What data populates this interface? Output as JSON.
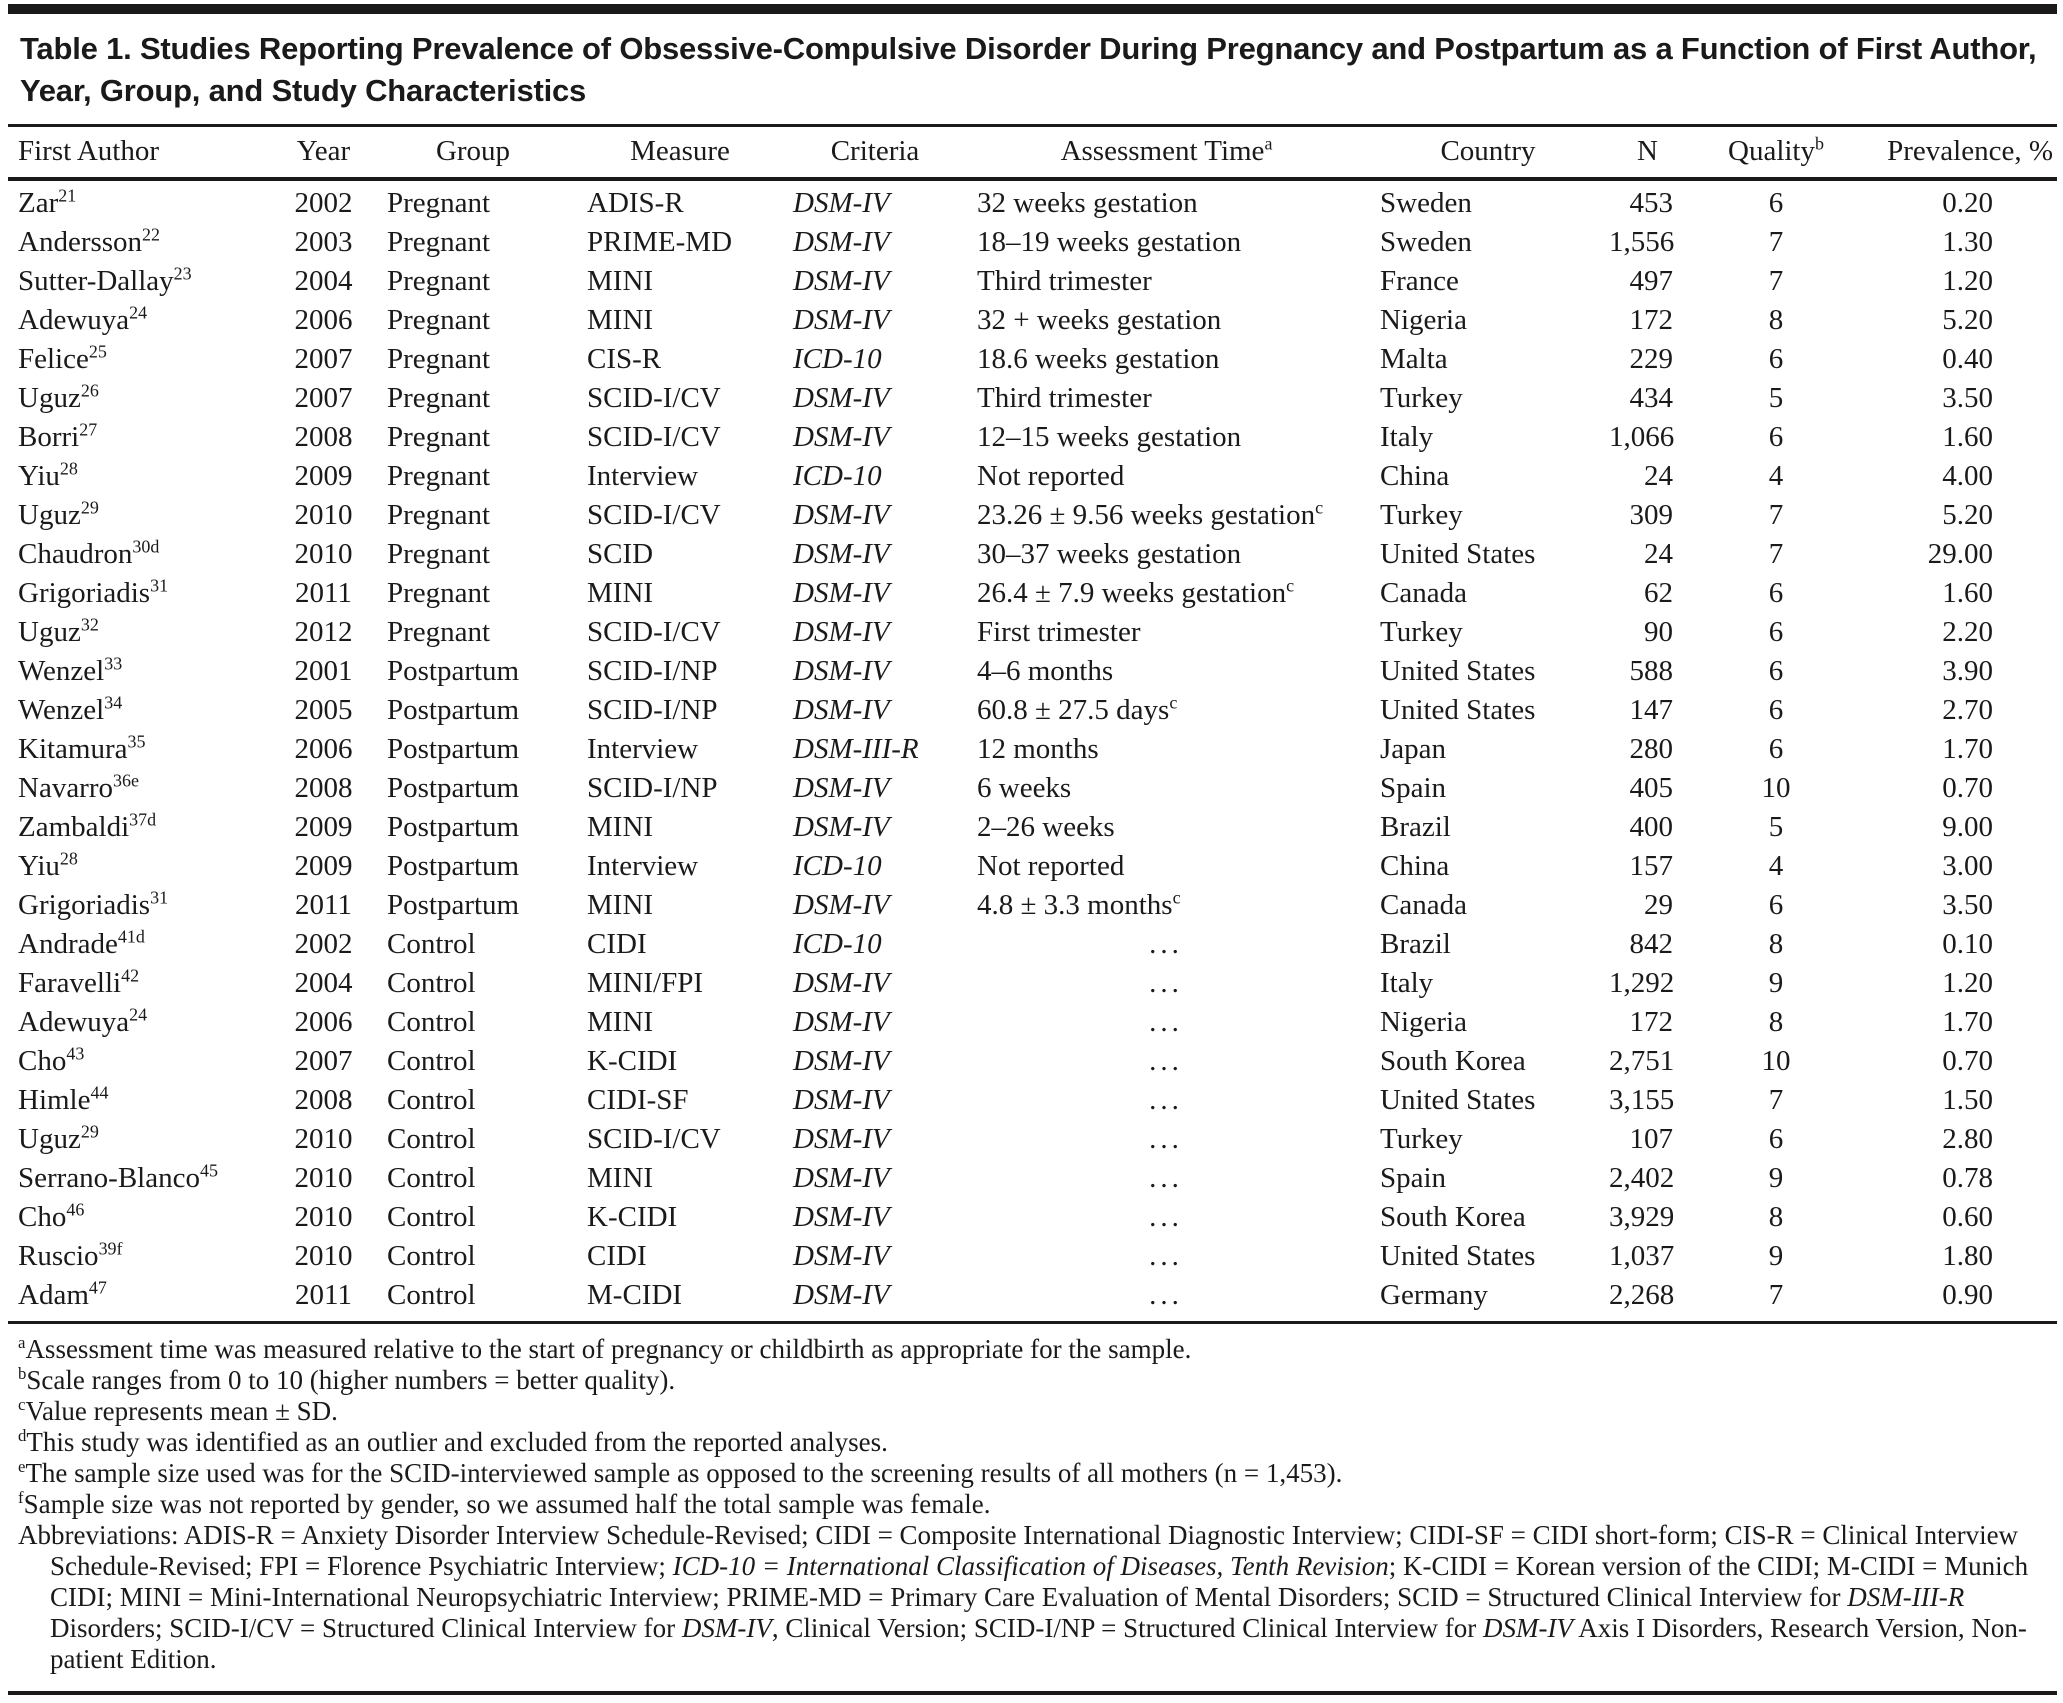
{
  "title": "Table 1. Studies Reporting Prevalence of Obsessive-Compulsive Disorder During Pregnancy and Postpartum as a Function of First Author, Year, Group, and Study Characteristics",
  "columns": [
    {
      "label": "First Author",
      "sup": ""
    },
    {
      "label": "Year",
      "sup": ""
    },
    {
      "label": "Group",
      "sup": ""
    },
    {
      "label": "Measure",
      "sup": ""
    },
    {
      "label": "Criteria",
      "sup": ""
    },
    {
      "label": "Assessment Time",
      "sup": "a"
    },
    {
      "label": "Country",
      "sup": ""
    },
    {
      "label": "N",
      "sup": ""
    },
    {
      "label": "Quality",
      "sup": "b"
    },
    {
      "label": "Prevalence, %",
      "sup": ""
    }
  ],
  "rows": [
    {
      "author": "Zar",
      "ref": "21",
      "year": "2002",
      "group": "Pregnant",
      "measure": "ADIS-R",
      "criteria": "DSM-IV",
      "time": "32 weeks gestation",
      "time_sup": "",
      "country": "Sweden",
      "n": "453",
      "quality": "6",
      "prevalence": "0.20"
    },
    {
      "author": "Andersson",
      "ref": "22",
      "year": "2003",
      "group": "Pregnant",
      "measure": "PRIME-MD",
      "criteria": "DSM-IV",
      "time": "18–19 weeks gestation",
      "time_sup": "",
      "country": "Sweden",
      "n": "1,556",
      "quality": "7",
      "prevalence": "1.30"
    },
    {
      "author": "Sutter-Dallay",
      "ref": "23",
      "year": "2004",
      "group": "Pregnant",
      "measure": "MINI",
      "criteria": "DSM-IV",
      "time": "Third trimester",
      "time_sup": "",
      "country": "France",
      "n": "497",
      "quality": "7",
      "prevalence": "1.20"
    },
    {
      "author": "Adewuya",
      "ref": "24",
      "year": "2006",
      "group": "Pregnant",
      "measure": "MINI",
      "criteria": "DSM-IV",
      "time": "32 + weeks gestation",
      "time_sup": "",
      "country": "Nigeria",
      "n": "172",
      "quality": "8",
      "prevalence": "5.20"
    },
    {
      "author": "Felice",
      "ref": "25",
      "year": "2007",
      "group": "Pregnant",
      "measure": "CIS-R",
      "criteria": "ICD-10",
      "time": "18.6 weeks gestation",
      "time_sup": "",
      "country": "Malta",
      "n": "229",
      "quality": "6",
      "prevalence": "0.40"
    },
    {
      "author": "Uguz",
      "ref": "26",
      "year": "2007",
      "group": "Pregnant",
      "measure": "SCID-I/CV",
      "criteria": "DSM-IV",
      "time": "Third trimester",
      "time_sup": "",
      "country": "Turkey",
      "n": "434",
      "quality": "5",
      "prevalence": "3.50"
    },
    {
      "author": "Borri",
      "ref": "27",
      "year": "2008",
      "group": "Pregnant",
      "measure": "SCID-I/CV",
      "criteria": "DSM-IV",
      "time": "12–15 weeks gestation",
      "time_sup": "",
      "country": "Italy",
      "n": "1,066",
      "quality": "6",
      "prevalence": "1.60"
    },
    {
      "author": "Yiu",
      "ref": "28",
      "year": "2009",
      "group": "Pregnant",
      "measure": "Interview",
      "criteria": "ICD-10",
      "time": "Not reported",
      "time_sup": "",
      "country": "China",
      "n": "24",
      "quality": "4",
      "prevalence": "4.00"
    },
    {
      "author": "Uguz",
      "ref": "29",
      "year": "2010",
      "group": "Pregnant",
      "measure": "SCID-I/CV",
      "criteria": "DSM-IV",
      "time": "23.26 ± 9.56 weeks gestation",
      "time_sup": "c",
      "country": "Turkey",
      "n": "309",
      "quality": "7",
      "prevalence": "5.20"
    },
    {
      "author": "Chaudron",
      "ref": "30d",
      "year": "2010",
      "group": "Pregnant",
      "measure": "SCID",
      "criteria": "DSM-IV",
      "time": "30–37 weeks gestation",
      "time_sup": "",
      "country": "United States",
      "n": "24",
      "quality": "7",
      "prevalence": "29.00"
    },
    {
      "author": "Grigoriadis",
      "ref": "31",
      "year": "2011",
      "group": "Pregnant",
      "measure": "MINI",
      "criteria": "DSM-IV",
      "time": "26.4 ± 7.9 weeks gestation",
      "time_sup": "c",
      "country": "Canada",
      "n": "62",
      "quality": "6",
      "prevalence": "1.60"
    },
    {
      "author": "Uguz",
      "ref": "32",
      "year": "2012",
      "group": "Pregnant",
      "measure": "SCID-I/CV",
      "criteria": "DSM-IV",
      "time": "First trimester",
      "time_sup": "",
      "country": "Turkey",
      "n": "90",
      "quality": "6",
      "prevalence": "2.20"
    },
    {
      "author": "Wenzel",
      "ref": "33",
      "year": "2001",
      "group": "Postpartum",
      "measure": "SCID-I/NP",
      "criteria": "DSM-IV",
      "time": "4–6 months",
      "time_sup": "",
      "country": "United States",
      "n": "588",
      "quality": "6",
      "prevalence": "3.90"
    },
    {
      "author": "Wenzel",
      "ref": "34",
      "year": "2005",
      "group": "Postpartum",
      "measure": "SCID-I/NP",
      "criteria": "DSM-IV",
      "time": "60.8 ± 27.5 days",
      "time_sup": "c",
      "country": "United States",
      "n": "147",
      "quality": "6",
      "prevalence": "2.70"
    },
    {
      "author": "Kitamura",
      "ref": "35",
      "year": "2006",
      "group": "Postpartum",
      "measure": "Interview",
      "criteria": "DSM-III-R",
      "time": "12 months",
      "time_sup": "",
      "country": "Japan",
      "n": "280",
      "quality": "6",
      "prevalence": "1.70"
    },
    {
      "author": "Navarro",
      "ref": "36e",
      "year": "2008",
      "group": "Postpartum",
      "measure": "SCID-I/NP",
      "criteria": "DSM-IV",
      "time": "6 weeks",
      "time_sup": "",
      "country": "Spain",
      "n": "405",
      "quality": "10",
      "prevalence": "0.70"
    },
    {
      "author": "Zambaldi",
      "ref": "37d",
      "year": "2009",
      "group": "Postpartum",
      "measure": "MINI",
      "criteria": "DSM-IV",
      "time": "2–26 weeks",
      "time_sup": "",
      "country": "Brazil",
      "n": "400",
      "quality": "5",
      "prevalence": "9.00"
    },
    {
      "author": "Yiu",
      "ref": "28",
      "year": "2009",
      "group": "Postpartum",
      "measure": "Interview",
      "criteria": "ICD-10",
      "time": "Not reported",
      "time_sup": "",
      "country": "China",
      "n": "157",
      "quality": "4",
      "prevalence": "3.00"
    },
    {
      "author": "Grigoriadis",
      "ref": "31",
      "year": "2011",
      "group": "Postpartum",
      "measure": "MINI",
      "criteria": "DSM-IV",
      "time": "4.8 ± 3.3 months",
      "time_sup": "c",
      "country": "Canada",
      "n": "29",
      "quality": "6",
      "prevalence": "3.50"
    },
    {
      "author": "Andrade",
      "ref": "41d",
      "year": "2002",
      "group": "Control",
      "measure": "CIDI",
      "criteria": "ICD-10",
      "time": "...",
      "time_sup": "",
      "country": "Brazil",
      "n": "842",
      "quality": "8",
      "prevalence": "0.10"
    },
    {
      "author": "Faravelli",
      "ref": "42",
      "year": "2004",
      "group": "Control",
      "measure": "MINI/FPI",
      "criteria": "DSM-IV",
      "time": "...",
      "time_sup": "",
      "country": "Italy",
      "n": "1,292",
      "quality": "9",
      "prevalence": "1.20"
    },
    {
      "author": "Adewuya",
      "ref": "24",
      "year": "2006",
      "group": "Control",
      "measure": "MINI",
      "criteria": "DSM-IV",
      "time": "...",
      "time_sup": "",
      "country": "Nigeria",
      "n": "172",
      "quality": "8",
      "prevalence": "1.70"
    },
    {
      "author": "Cho",
      "ref": "43",
      "year": "2007",
      "group": "Control",
      "measure": "K-CIDI",
      "criteria": "DSM-IV",
      "time": "...",
      "time_sup": "",
      "country": "South Korea",
      "n": "2,751",
      "quality": "10",
      "prevalence": "0.70"
    },
    {
      "author": "Himle",
      "ref": "44",
      "year": "2008",
      "group": "Control",
      "measure": "CIDI-SF",
      "criteria": "DSM-IV",
      "time": "...",
      "time_sup": "",
      "country": "United States",
      "n": "3,155",
      "quality": "7",
      "prevalence": "1.50"
    },
    {
      "author": "Uguz",
      "ref": "29",
      "year": "2010",
      "group": "Control",
      "measure": "SCID-I/CV",
      "criteria": "DSM-IV",
      "time": "...",
      "time_sup": "",
      "country": "Turkey",
      "n": "107",
      "quality": "6",
      "prevalence": "2.80"
    },
    {
      "author": "Serrano-Blanco",
      "ref": "45",
      "year": "2010",
      "group": "Control",
      "measure": "MINI",
      "criteria": "DSM-IV",
      "time": "...",
      "time_sup": "",
      "country": "Spain",
      "n": "2,402",
      "quality": "9",
      "prevalence": "0.78"
    },
    {
      "author": "Cho",
      "ref": "46",
      "year": "2010",
      "group": "Control",
      "measure": "K-CIDI",
      "criteria": "DSM-IV",
      "time": "...",
      "time_sup": "",
      "country": "South Korea",
      "n": "3,929",
      "quality": "8",
      "prevalence": "0.60"
    },
    {
      "author": "Ruscio",
      "ref": "39f",
      "year": "2010",
      "group": "Control",
      "measure": "CIDI",
      "criteria": "DSM-IV",
      "time": "...",
      "time_sup": "",
      "country": "United States",
      "n": "1,037",
      "quality": "9",
      "prevalence": "1.80"
    },
    {
      "author": "Adam",
      "ref": "47",
      "year": "2011",
      "group": "Control",
      "measure": "M-CIDI",
      "criteria": "DSM-IV",
      "time": "...",
      "time_sup": "",
      "country": "Germany",
      "n": "2,268",
      "quality": "7",
      "prevalence": "0.90"
    }
  ],
  "footnotes": [
    {
      "sup": "a",
      "text": "Assessment time was measured relative to the start of pregnancy or childbirth as appropriate for the sample."
    },
    {
      "sup": "b",
      "text": "Scale ranges from 0 to 10 (higher numbers = better quality)."
    },
    {
      "sup": "c",
      "text": "Value represents mean ± SD."
    },
    {
      "sup": "d",
      "text": "This study was identified as an outlier and excluded from the reported analyses."
    },
    {
      "sup": "e",
      "text": "The sample size used was for the SCID-interviewed sample as opposed to the screening results of all mothers (n = 1,453)."
    },
    {
      "sup": "f",
      "text": "Sample size was not reported by gender, so we assumed half the total sample was female."
    }
  ],
  "abbreviations": [
    {
      "text": "Abbreviations: ADIS-R = Anxiety Disorder Interview Schedule-Revised; CIDI = Composite International Diagnostic Interview; CIDI-SF = CIDI short-form; CIS-R = Clinical Interview Schedule-Revised; FPI = Florence Psychiatric Interview; ",
      "italic": false
    },
    {
      "text": "ICD-10 = International Classification of Diseases, Tenth Revision",
      "italic": true
    },
    {
      "text": "; K-CIDI = Korean version of the CIDI; M-CIDI = Munich CIDI; MINI = Mini-International Neuropsychiatric Interview; PRIME-MD = Primary Care Evaluation of Mental Disorders; SCID = Structured Clinical Interview for ",
      "italic": false
    },
    {
      "text": "DSM-III-R",
      "italic": true
    },
    {
      "text": " Disorders; SCID-I/CV = Structured Clinical Interview for ",
      "italic": false
    },
    {
      "text": "DSM-IV",
      "italic": true
    },
    {
      "text": ", Clinical Version; SCID-I/NP = Structured Clinical Interview for ",
      "italic": false
    },
    {
      "text": "DSM-IV",
      "italic": true
    },
    {
      "text": " Axis I Disorders, Research Version, Non-patient Edition.",
      "italic": false
    }
  ],
  "colors": {
    "rule": "#1a1a1a",
    "text": "#1a1a1a",
    "background": "#ffffff"
  }
}
